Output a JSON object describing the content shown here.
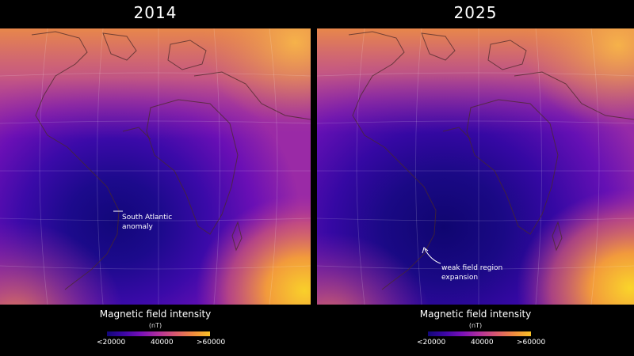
{
  "panels": [
    {
      "year": "2014",
      "annotation": [
        "South Atlantic",
        "anomaly"
      ]
    },
    {
      "year": "2025",
      "annotation": [
        "weak field region",
        "expansion"
      ]
    }
  ],
  "legend": {
    "title": "Magnetic field intensity",
    "unit": "(nT)",
    "ticks": [
      "<20000",
      "40000",
      ">60000"
    ]
  },
  "colors": {
    "low": "#12077a",
    "mid": "#7a10b8",
    "high": "#f9c125",
    "background": "#000000"
  }
}
